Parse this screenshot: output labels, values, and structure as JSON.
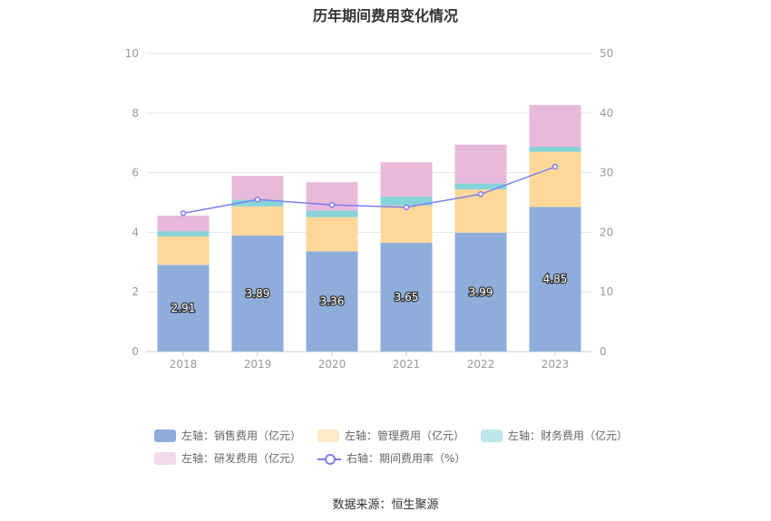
{
  "title": "历年期间费用变化情况",
  "source": "数据来源：恒生聚源",
  "chart_data": {
    "type": "bar",
    "stacked": true,
    "categories": [
      "2018",
      "2019",
      "2020",
      "2021",
      "2022",
      "2023"
    ],
    "left_axis": {
      "ylim": [
        0,
        10
      ],
      "ticks": [
        "0",
        "2",
        "4",
        "6",
        "8",
        "10"
      ]
    },
    "right_axis": {
      "ylim": [
        0,
        50
      ],
      "ticks": [
        "0",
        "10",
        "20",
        "30",
        "40",
        "50"
      ]
    },
    "series": [
      {
        "name": "左轴：销售费用（亿元）",
        "axis": "left",
        "type": "bar",
        "color": "#8eaddb",
        "values": [
          2.91,
          3.89,
          3.36,
          3.65,
          3.99,
          4.85
        ],
        "labels": [
          "2.91",
          "3.89",
          "3.36",
          "3.65",
          "3.99",
          "4.85"
        ]
      },
      {
        "name": "左轴：管理费用（亿元）",
        "axis": "left",
        "type": "bar",
        "color": "#fdd89a",
        "values": [
          0.95,
          0.98,
          1.15,
          1.25,
          1.45,
          1.85
        ]
      },
      {
        "name": "左轴：财务费用（亿元）",
        "axis": "left",
        "type": "bar",
        "color": "#86d3d8",
        "values": [
          0.18,
          0.22,
          0.22,
          0.3,
          0.2,
          0.17
        ]
      },
      {
        "name": "左轴：研发费用（亿元）",
        "axis": "left",
        "type": "bar",
        "color": "#e8b9da",
        "values": [
          0.52,
          0.8,
          0.95,
          1.15,
          1.3,
          1.4
        ]
      },
      {
        "name": "右轴：期间费用率（%）",
        "axis": "right",
        "type": "line",
        "color": "#7b7ef0",
        "values": [
          23.2,
          25.5,
          24.6,
          24.2,
          26.4,
          31.0
        ]
      }
    ],
    "legend_position": "bottom",
    "grid": true
  }
}
